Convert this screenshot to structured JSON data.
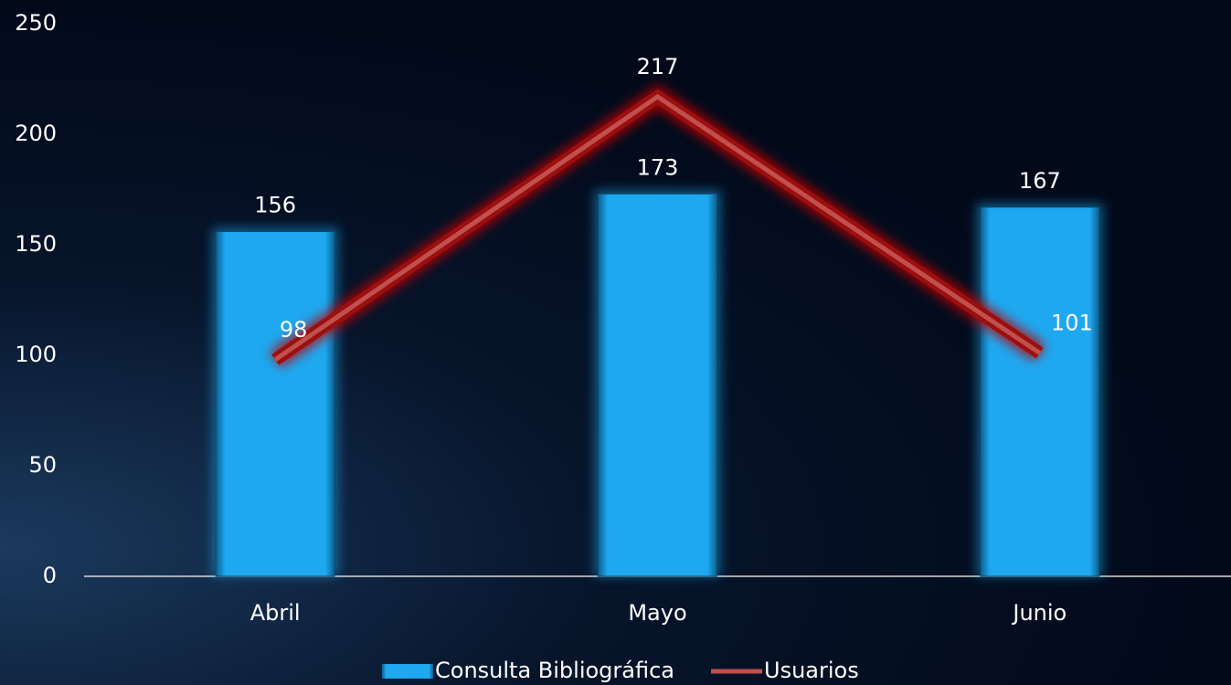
{
  "chart_data": {
    "type": "bar",
    "categories": [
      "Abril",
      "Mayo",
      "Junio"
    ],
    "series": [
      {
        "name": "Consulta Bibliográfica",
        "color": "#1ea8f0",
        "values": [
          156,
          173,
          167
        ]
      },
      {
        "name": "Usuarios",
        "type": "line",
        "color": "#c0504d",
        "values": [
          98,
          217,
          101
        ]
      }
    ],
    "ylim": [
      0,
      250
    ],
    "yticks": [
      0,
      50,
      100,
      150,
      200,
      250
    ],
    "grid": false,
    "legend": "bottom"
  }
}
